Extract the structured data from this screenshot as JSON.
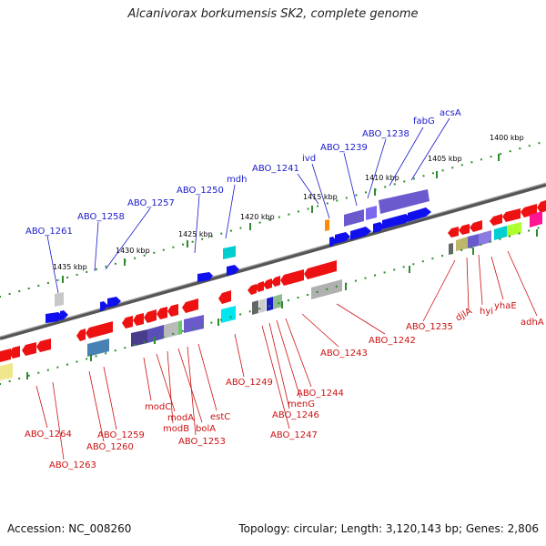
{
  "title": "Alcanivorax borkumensis SK2, complete genome",
  "footer": {
    "accession": "Accession: NC_008260",
    "summary": "Topology: circular; Length: 3,120,143 bp; Genes: 2,806"
  },
  "colors": {
    "backbone": "#777777",
    "tick": "#2e8b2e",
    "forward_gene": "#1010ee",
    "reverse_gene": "#ee1111",
    "cog_block": "#6a5acd",
    "forward_label": "#1a1acc",
    "reverse_label": "#cc1111"
  },
  "scale_labels": [
    "1400 kbp",
    "1405 kbp",
    "1410 kbp",
    "1415 kbp",
    "1420 kbp",
    "1425 kbp",
    "1430 kbp",
    "1435 kbp"
  ],
  "forward_labels": [
    "ABO_1261",
    "ABO_1258",
    "ABO_1257",
    "ABO_1250",
    "mdh",
    "ABO_1241",
    "ivd",
    "ABO_1239",
    "ABO_1238",
    "fabG",
    "acsA"
  ],
  "reverse_labels": [
    "ABO_1264",
    "ABO_1263",
    "ABO_1259",
    "ABO_1260",
    "modC",
    "modA",
    "modB",
    "bolA",
    "ABO_1253",
    "estC",
    "ABO_1249",
    "ABO_1247",
    "ABO_1246",
    "menG",
    "ABO_1244",
    "ABO_1243",
    "ABO_1242",
    "ABO_1235",
    "djlA",
    "hyi",
    "yhaE",
    "adhA"
  ]
}
